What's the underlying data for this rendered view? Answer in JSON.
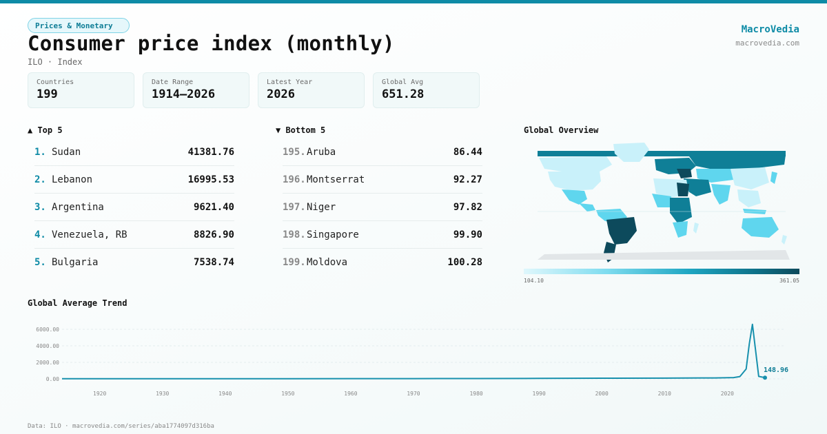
{
  "header": {
    "category": "Prices & Monetary",
    "title": "Consumer price index (monthly)",
    "subtitle": "ILO · Index",
    "brand": "MacroVedia",
    "brand_url": "macrovedia.com"
  },
  "stats": [
    {
      "label": "Countries",
      "value": "199"
    },
    {
      "label": "Date Range",
      "value": "1914–2026"
    },
    {
      "label": "Latest Year",
      "value": "2026"
    },
    {
      "label": "Global Avg",
      "value": "651.28"
    }
  ],
  "top": {
    "heading": "▲ Top 5",
    "items": [
      {
        "rank": "1.",
        "name": "Sudan",
        "value": "41381.76"
      },
      {
        "rank": "2.",
        "name": "Lebanon",
        "value": "16995.53"
      },
      {
        "rank": "3.",
        "name": "Argentina",
        "value": "9621.40"
      },
      {
        "rank": "4.",
        "name": "Venezuela, RB",
        "value": "8826.90"
      },
      {
        "rank": "5.",
        "name": "Bulgaria",
        "value": "7538.74"
      }
    ]
  },
  "bottom": {
    "heading": "▼ Bottom 5",
    "items": [
      {
        "rank": "195.",
        "name": "Aruba",
        "value": "86.44"
      },
      {
        "rank": "196.",
        "name": "Montserrat",
        "value": "92.27"
      },
      {
        "rank": "197.",
        "name": "Niger",
        "value": "97.82"
      },
      {
        "rank": "198.",
        "name": "Singapore",
        "value": "99.90"
      },
      {
        "rank": "199.",
        "name": "Moldova",
        "value": "100.28"
      }
    ]
  },
  "map": {
    "heading": "Global Overview",
    "legend_min": "104.10",
    "legend_max": "361.05"
  },
  "colors": {
    "accent": "#0e8ba6",
    "line": "#1790ad",
    "map_light": "#c9f1fa",
    "map_mid": "#5fd6ee",
    "map_dark": "#0f7f97",
    "map_darkest": "#0d4a5c",
    "map_nodata": "#e2e6e8"
  },
  "chart_data": {
    "type": "line",
    "title": "Global Average Trend",
    "xlabel": "",
    "ylabel": "",
    "xlim": [
      1914,
      2026
    ],
    "ylim": [
      0,
      7000
    ],
    "x_ticks": [
      1920,
      1930,
      1940,
      1950,
      1960,
      1970,
      1980,
      1990,
      2000,
      2010,
      2020
    ],
    "y_ticks": [
      "0.00",
      "2000.00",
      "4000.00",
      "6000.00"
    ],
    "y_tick_values": [
      0,
      2000,
      4000,
      6000
    ],
    "grid": true,
    "series": [
      {
        "x": [
          1914,
          1930,
          1950,
          1970,
          1980,
          1990,
          2000,
          2010,
          2018,
          2021,
          2022,
          2023,
          2023.5,
          2024,
          2024.5,
          2025,
          2026
        ],
        "y": [
          20,
          22,
          24,
          30,
          40,
          55,
          80,
          95,
          120,
          160,
          280,
          1200,
          4200,
          6600,
          3500,
          300,
          148.96
        ]
      }
    ],
    "annotations": [
      {
        "x": 2026,
        "y": 148.96,
        "label": "148.96"
      }
    ]
  },
  "footer": "Data: ILO · macrovedia.com/series/aba1774097d316ba"
}
